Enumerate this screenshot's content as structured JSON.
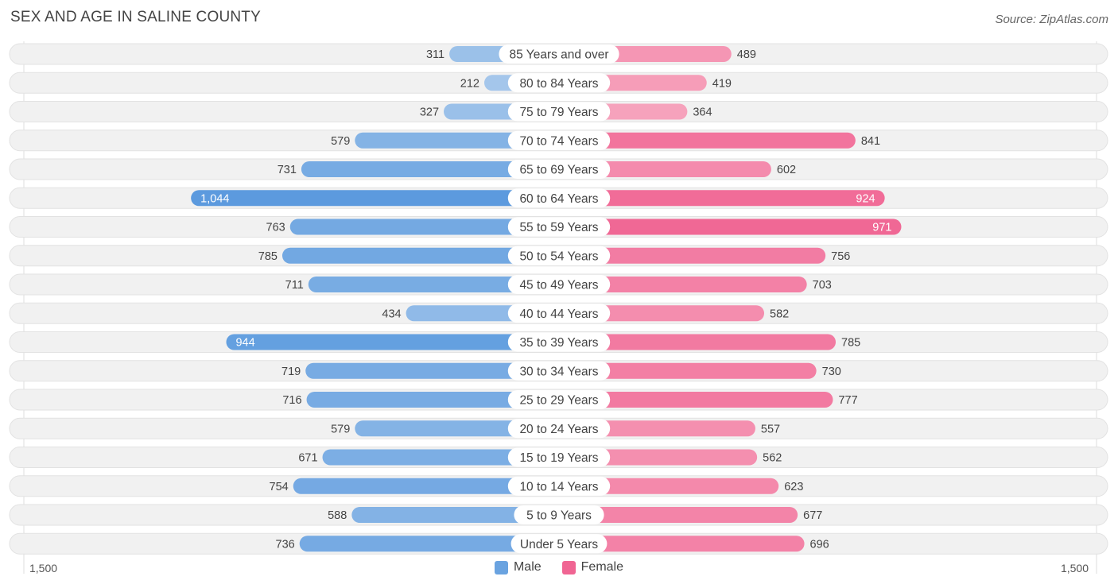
{
  "header": {
    "title": "SEX AND AGE IN SALINE COUNTY",
    "source": "Source: ZipAtlas.com"
  },
  "axis": {
    "left_label": "1,500",
    "right_label": "1,500"
  },
  "legend": {
    "male_label": "Male",
    "female_label": "Female"
  },
  "colors": {
    "male_light": "#a9c9ec",
    "male_dark": "#5b9ade",
    "female_light": "#f7a8c0",
    "female_dark": "#f06593",
    "row_bg": "#f1f1f1",
    "row_border": "#e2e2e2"
  },
  "chart_data": {
    "type": "bar",
    "orientation": "horizontal-diverging",
    "title": "SEX AND AGE IN SALINE COUNTY",
    "xlim": [
      -1500,
      1500
    ],
    "categories": [
      "85 Years and over",
      "80 to 84 Years",
      "75 to 79 Years",
      "70 to 74 Years",
      "65 to 69 Years",
      "60 to 64 Years",
      "55 to 59 Years",
      "50 to 54 Years",
      "45 to 49 Years",
      "40 to 44 Years",
      "35 to 39 Years",
      "30 to 34 Years",
      "25 to 29 Years",
      "20 to 24 Years",
      "15 to 19 Years",
      "10 to 14 Years",
      "5 to 9 Years",
      "Under 5 Years"
    ],
    "series": [
      {
        "name": "Male",
        "values": [
          311,
          212,
          327,
          579,
          731,
          1044,
          763,
          785,
          711,
          434,
          944,
          719,
          716,
          579,
          671,
          754,
          588,
          736
        ],
        "labels": [
          "311",
          "212",
          "327",
          "579",
          "731",
          "1,044",
          "763",
          "785",
          "711",
          "434",
          "944",
          "719",
          "716",
          "579",
          "671",
          "754",
          "588",
          "736"
        ]
      },
      {
        "name": "Female",
        "values": [
          489,
          419,
          364,
          841,
          602,
          924,
          971,
          756,
          703,
          582,
          785,
          730,
          777,
          557,
          562,
          623,
          677,
          696
        ],
        "labels": [
          "489",
          "419",
          "364",
          "841",
          "602",
          "924",
          "971",
          "756",
          "703",
          "582",
          "785",
          "730",
          "777",
          "557",
          "562",
          "623",
          "677",
          "696"
        ]
      }
    ],
    "legend_position": "bottom-center"
  }
}
